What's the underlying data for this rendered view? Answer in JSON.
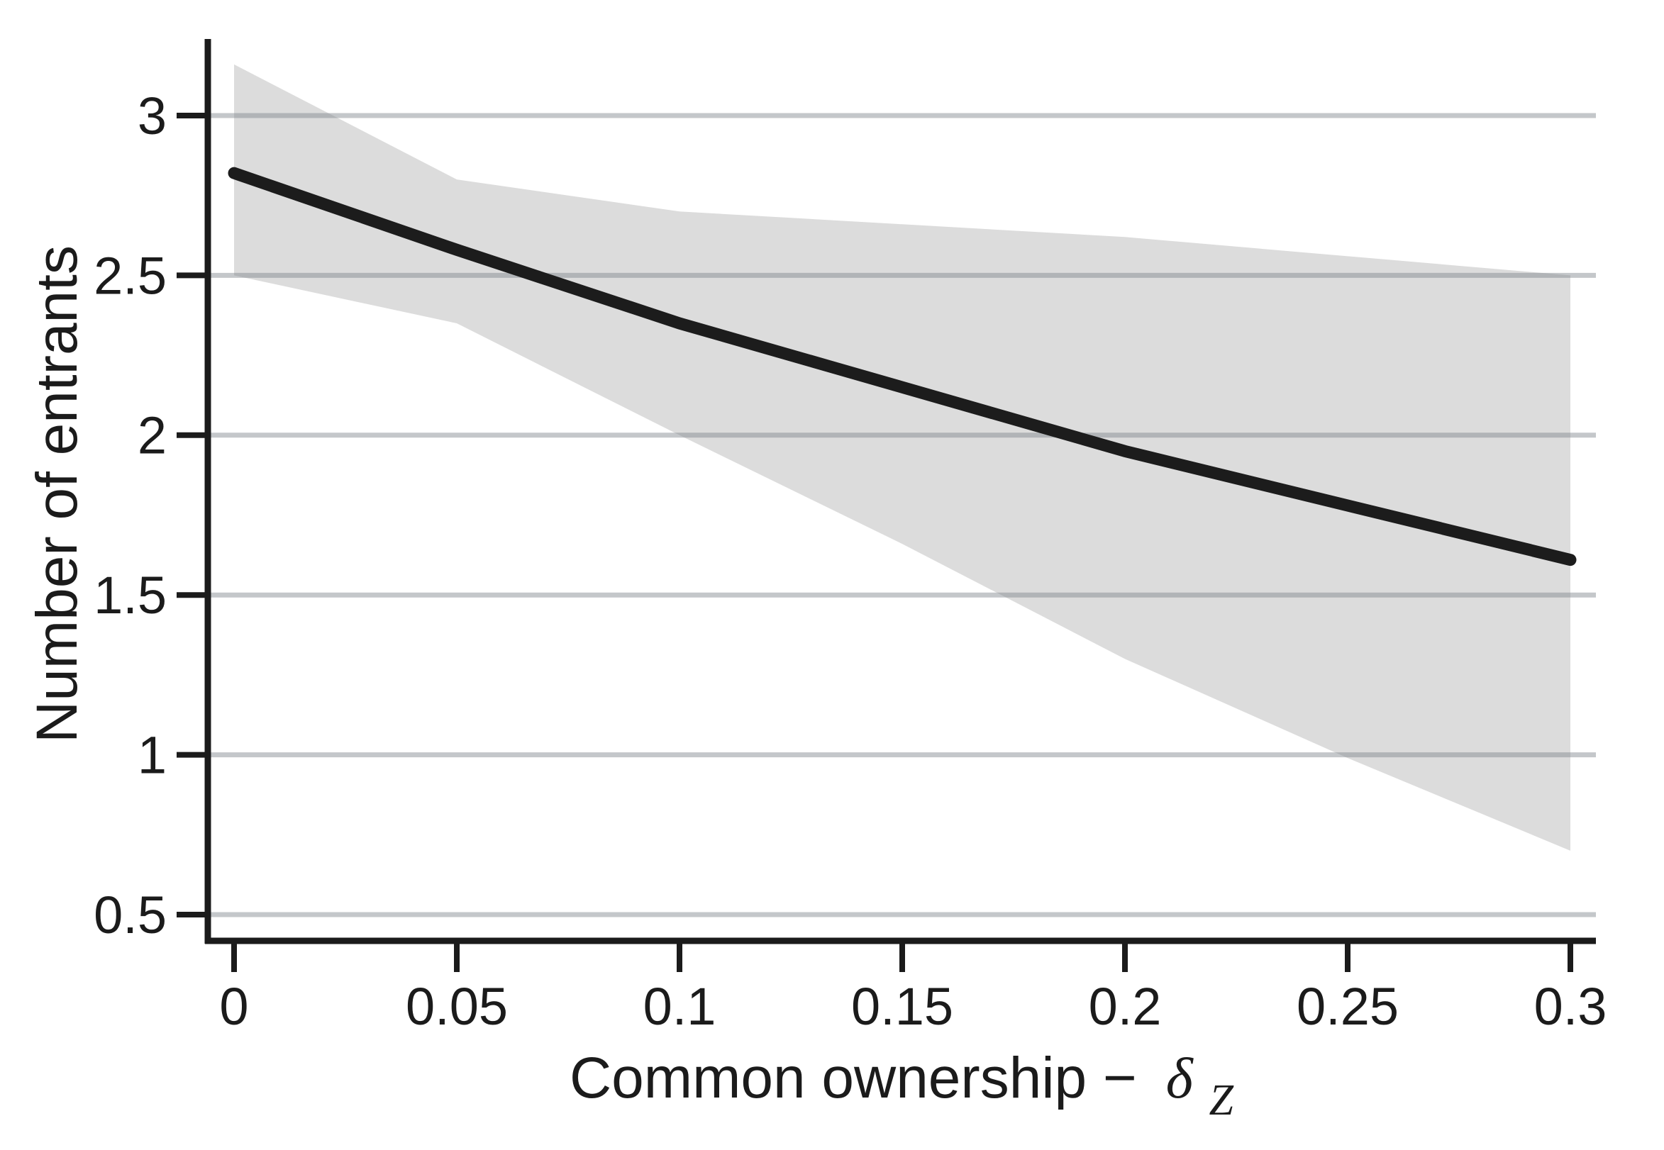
{
  "figure": {
    "background": "#ffffff",
    "text_color": "#1b1b1b"
  },
  "chart_data": {
    "type": "line",
    "title": "",
    "ylabel": "Number of entrants",
    "xlabel": {
      "text": "Common ownership −",
      "symbol": "δ",
      "subscript": "Z"
    },
    "x": [
      0,
      0.05,
      0.1,
      0.15,
      0.2,
      0.25,
      0.3
    ],
    "series": [
      {
        "name": "predicted-number-of-entrants",
        "values": [
          2.82,
          2.58,
          2.35,
          2.15,
          1.95,
          1.78,
          1.61
        ],
        "color": "#1c1c1c",
        "stroke_width": 17
      },
      {
        "name": "ci-upper",
        "values": [
          3.16,
          2.8,
          2.7,
          2.66,
          2.62,
          2.56,
          2.5
        ]
      },
      {
        "name": "ci-lower",
        "values": [
          2.5,
          2.35,
          2.0,
          1.66,
          1.3,
          0.99,
          0.7
        ]
      }
    ],
    "band_color": "#dcdcdc",
    "gridline_color": "rgba(125,130,138,0.45)",
    "axis_color": "#1b1b1b",
    "xticks": {
      "values": [
        0,
        0.05,
        0.1,
        0.15,
        0.2,
        0.25,
        0.3
      ],
      "labels": [
        "0",
        "0.05",
        "0.1",
        "0.15",
        "0.2",
        "0.25",
        "0.3"
      ]
    },
    "yticks": {
      "values": [
        0.5,
        1,
        1.5,
        2,
        2.5,
        3
      ],
      "labels": [
        "0.5",
        "1",
        "1.5",
        "2",
        "2.5",
        "3"
      ]
    },
    "xlim": [
      -0.006,
      0.306
    ],
    "ylim": [
      0.41,
      3.24
    ],
    "grid": "horizontal",
    "legend_position": "none"
  }
}
